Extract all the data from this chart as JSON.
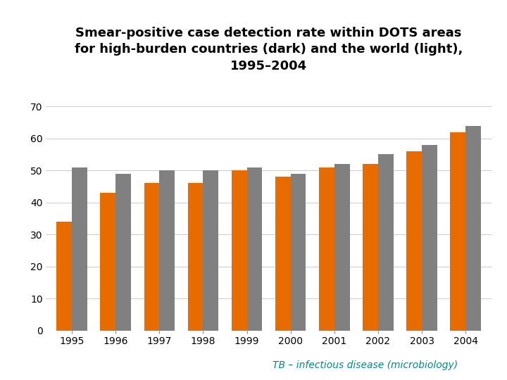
{
  "title_line1": "Smear-positive case detection rate within DOTS areas",
  "title_line2": "for high-burden countries (dark) and the world (light),",
  "title_line3": "1995–2004",
  "years": [
    "1995",
    "1996",
    "1997",
    "1998",
    "1999",
    "2000",
    "2001",
    "2002",
    "2003",
    "2004"
  ],
  "dark_values": [
    34,
    43,
    46,
    46,
    50,
    48,
    51,
    52,
    56,
    62
  ],
  "light_values": [
    51,
    49,
    50,
    50,
    51,
    49,
    52,
    55,
    58,
    64
  ],
  "dark_color": "#E86B00",
  "light_color": "#808080",
  "background_color": "#FFFFFF",
  "ylim": [
    0,
    70
  ],
  "yticks": [
    0,
    10,
    20,
    30,
    40,
    50,
    60,
    70
  ],
  "bar_width": 0.35,
  "title_fontsize": 13,
  "tick_fontsize": 10,
  "footnote": "TB – infectious disease (microbiology)",
  "footnote_color": "#008B8B",
  "footnote_fontsize": 10
}
